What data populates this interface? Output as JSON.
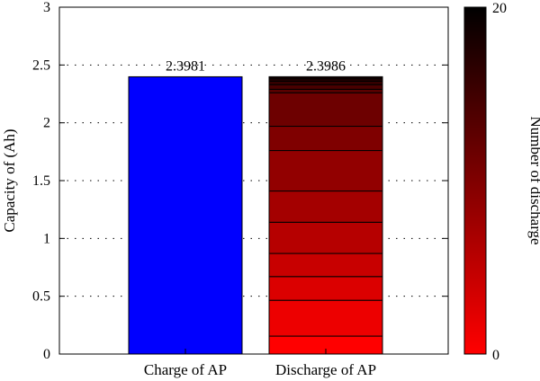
{
  "chart_data": {
    "type": "bar",
    "title": "",
    "xlabel": "",
    "ylabel": "Capacity of (Ah)",
    "ylim": [
      0,
      3
    ],
    "yticks": [
      "0",
      "0.5",
      "1",
      "1.5",
      "2",
      "2.5",
      "3"
    ],
    "grid": "horizontal dotted",
    "categories": [
      "Charge of AP",
      "Discharge of AP"
    ],
    "values": [
      2.3981,
      2.3986
    ],
    "value_labels": [
      "2.3981",
      "2.3986"
    ],
    "bar_colors": [
      "#0000ff",
      "#cc0000"
    ],
    "discharge_segment_boundaries": [
      0,
      0.155,
      0.465,
      0.67,
      0.87,
      1.14,
      1.41,
      1.76,
      1.97,
      2.26,
      2.29,
      2.33,
      2.36,
      2.38,
      2.3986
    ],
    "colorbar": {
      "label": "Number of discharge",
      "min": 0,
      "max": 20,
      "tick_labels": [
        "0",
        "20"
      ],
      "colormap": [
        "#ff0000",
        "#000000"
      ]
    }
  }
}
